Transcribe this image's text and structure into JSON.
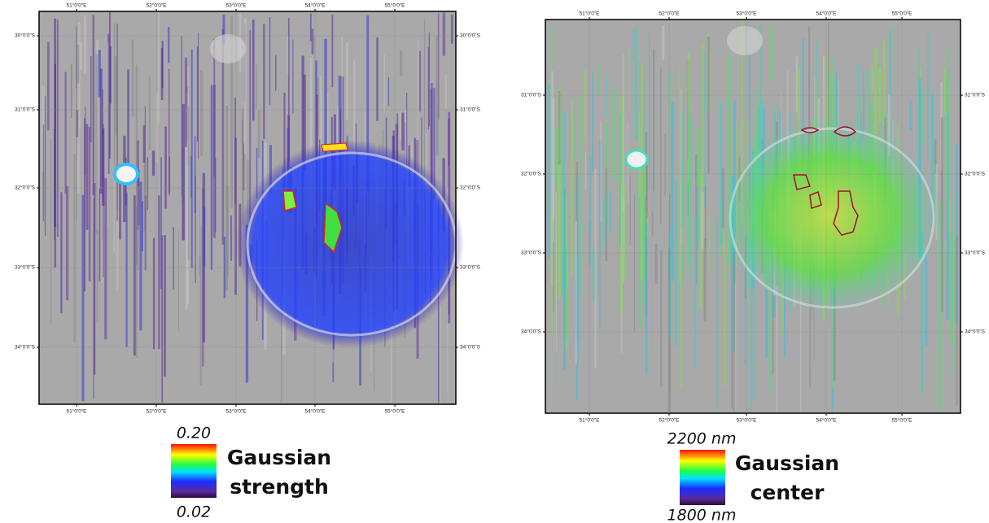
{
  "panels": [
    {
      "lon_labels": [
        "51°0'0\"E",
        "52°0'0\"E",
        "53°0'0\"E",
        "54°0'0\"E",
        "55°0'0\"E"
      ],
      "lat_labels": [
        "30°0'0\"S",
        "31°0'0\"S",
        "32°0'0\"S",
        "33°0'0\"S",
        "34°0'0\"S"
      ],
      "legend": {
        "max": "0.20",
        "min": "0.02",
        "title": [
          "Gaussian",
          "strength"
        ]
      }
    },
    {
      "lon_labels": [
        "51°0'0\"E",
        "52°0'0\"E",
        "53°0'0\"E",
        "54°0'0\"E",
        "55°0'0\"E"
      ],
      "lat_labels": [
        "31°0'0\"S",
        "32°0'0\"S",
        "33°0'0\"S",
        "34°0'0\"S"
      ],
      "legend": {
        "max": "2200 nm",
        "min": "1800 nm",
        "title": [
          "Gaussian",
          "center"
        ]
      }
    }
  ]
}
